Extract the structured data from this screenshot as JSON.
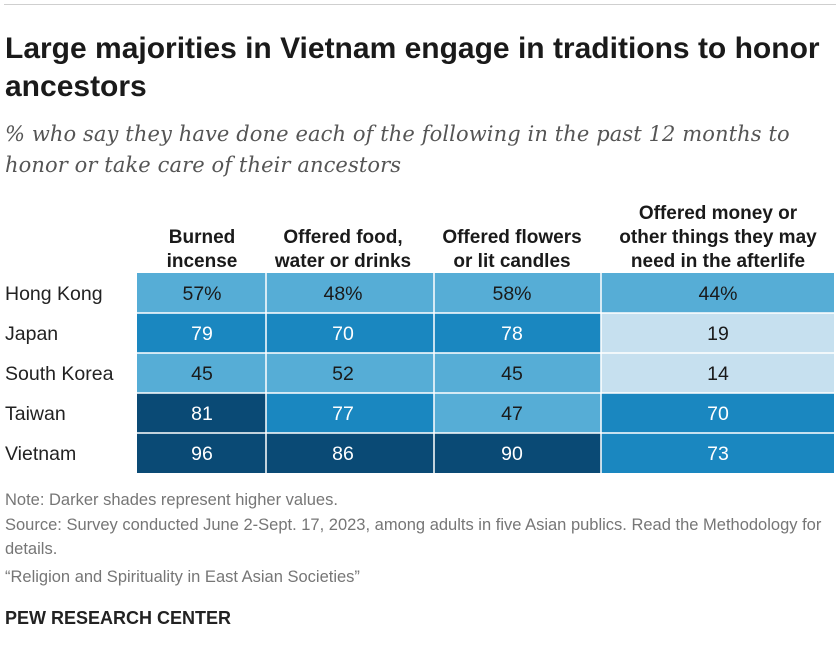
{
  "title": "Large majorities in Vietnam engage in traditions to honor ancestors",
  "subtitle": "% who say they have done each of the following in the past 12 months to honor or take care of their ancestors",
  "notes": {
    "note": "Note: Darker shades represent higher values.",
    "source": "Source: Survey conducted June 2-Sept. 17, 2023, among adults in five Asian publics. Read the Methodology for details.",
    "report": "“Religion and Spirituality in East Asian Societies”"
  },
  "brand": "PEW RESEARCH CENTER",
  "colors": {
    "shade_1": "#c6e0ef",
    "shade_2": "#56add6",
    "shade_3": "#1a87c0",
    "shade_4": "#0a4a75",
    "text_dark": "#1a1a1a",
    "text_light": "#ffffff"
  },
  "chart_data": {
    "type": "table",
    "columns": [
      [
        "Burned",
        "incense"
      ],
      [
        "Offered food,",
        "water or drinks"
      ],
      [
        "Offered flowers",
        "or lit candles"
      ],
      [
        "Offered money or",
        "other things they may",
        "need in the afterlife"
      ]
    ],
    "rows": [
      {
        "label": "Hong Kong",
        "values": [
          57,
          48,
          58,
          44
        ],
        "display": [
          "57%",
          "48%",
          "58%",
          "44%"
        ]
      },
      {
        "label": "Japan",
        "values": [
          79,
          70,
          78,
          19
        ],
        "display": [
          "79",
          "70",
          "78",
          "19"
        ]
      },
      {
        "label": "South Korea",
        "values": [
          45,
          52,
          45,
          14
        ],
        "display": [
          "45",
          "52",
          "45",
          "14"
        ]
      },
      {
        "label": "Taiwan",
        "values": [
          81,
          77,
          47,
          70
        ],
        "display": [
          "81",
          "77",
          "47",
          "70"
        ]
      },
      {
        "label": "Vietnam",
        "values": [
          96,
          86,
          90,
          73
        ],
        "display": [
          "96",
          "86",
          "90",
          "73"
        ]
      }
    ]
  }
}
